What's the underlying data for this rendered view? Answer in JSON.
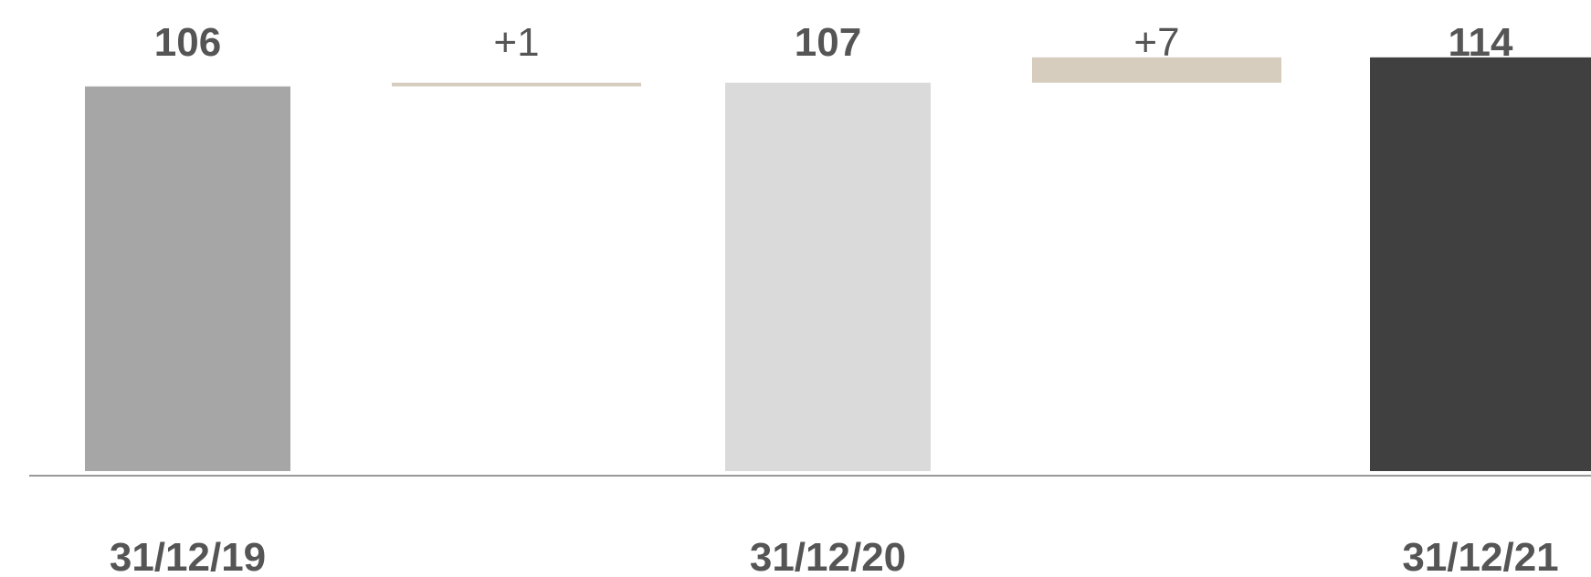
{
  "chart_data": {
    "type": "bar",
    "subtype": "waterfall",
    "title": "",
    "xlabel": "",
    "ylabel": "",
    "grid": false,
    "legend": "none",
    "steps": [
      {
        "kind": "total",
        "label": "31/12/19",
        "value": 106,
        "display": "106",
        "color": "#a6a6a6"
      },
      {
        "kind": "delta",
        "label": "",
        "value": 1,
        "display": "+1",
        "color": "#d6cdbf"
      },
      {
        "kind": "total",
        "label": "31/12/20",
        "value": 107,
        "display": "107",
        "color": "#dadada"
      },
      {
        "kind": "delta",
        "label": "",
        "value": 7,
        "display": "+7",
        "color": "#d6cdbf"
      },
      {
        "kind": "total",
        "label": "31/12/21",
        "value": 114,
        "display": "114",
        "color": "#404040"
      }
    ],
    "colors": {
      "baseline": "#999999",
      "text": "#555555"
    }
  }
}
